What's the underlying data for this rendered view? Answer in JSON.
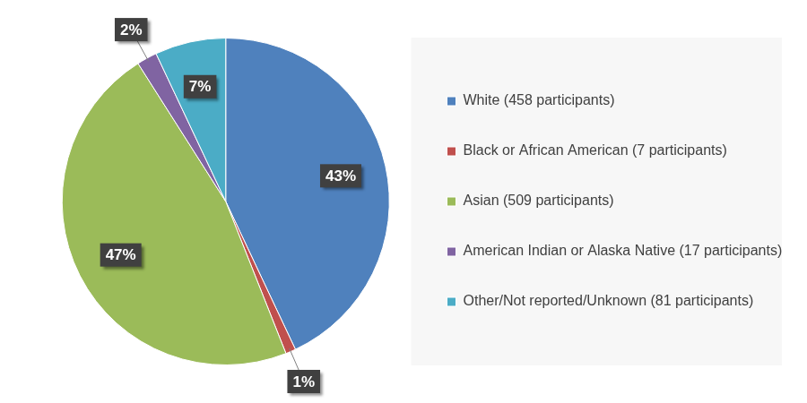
{
  "chart_data": {
    "type": "pie",
    "categories": [
      "White (458 participants)",
      "Black or African American (7 participants)",
      "Asian (509 participants)",
      "American Indian or Alaska Native (17 participants)",
      "Other/Not reported/Unknown (81 participants)"
    ],
    "values": [
      43,
      1,
      47,
      2,
      7
    ],
    "value_labels": [
      "43%",
      "1%",
      "47%",
      "2%",
      "7%"
    ],
    "colors": [
      "#4f81bd",
      "#c0504d",
      "#9bbb59",
      "#8064a2",
      "#4bacc6"
    ],
    "legend": "right",
    "data_labels": true
  }
}
